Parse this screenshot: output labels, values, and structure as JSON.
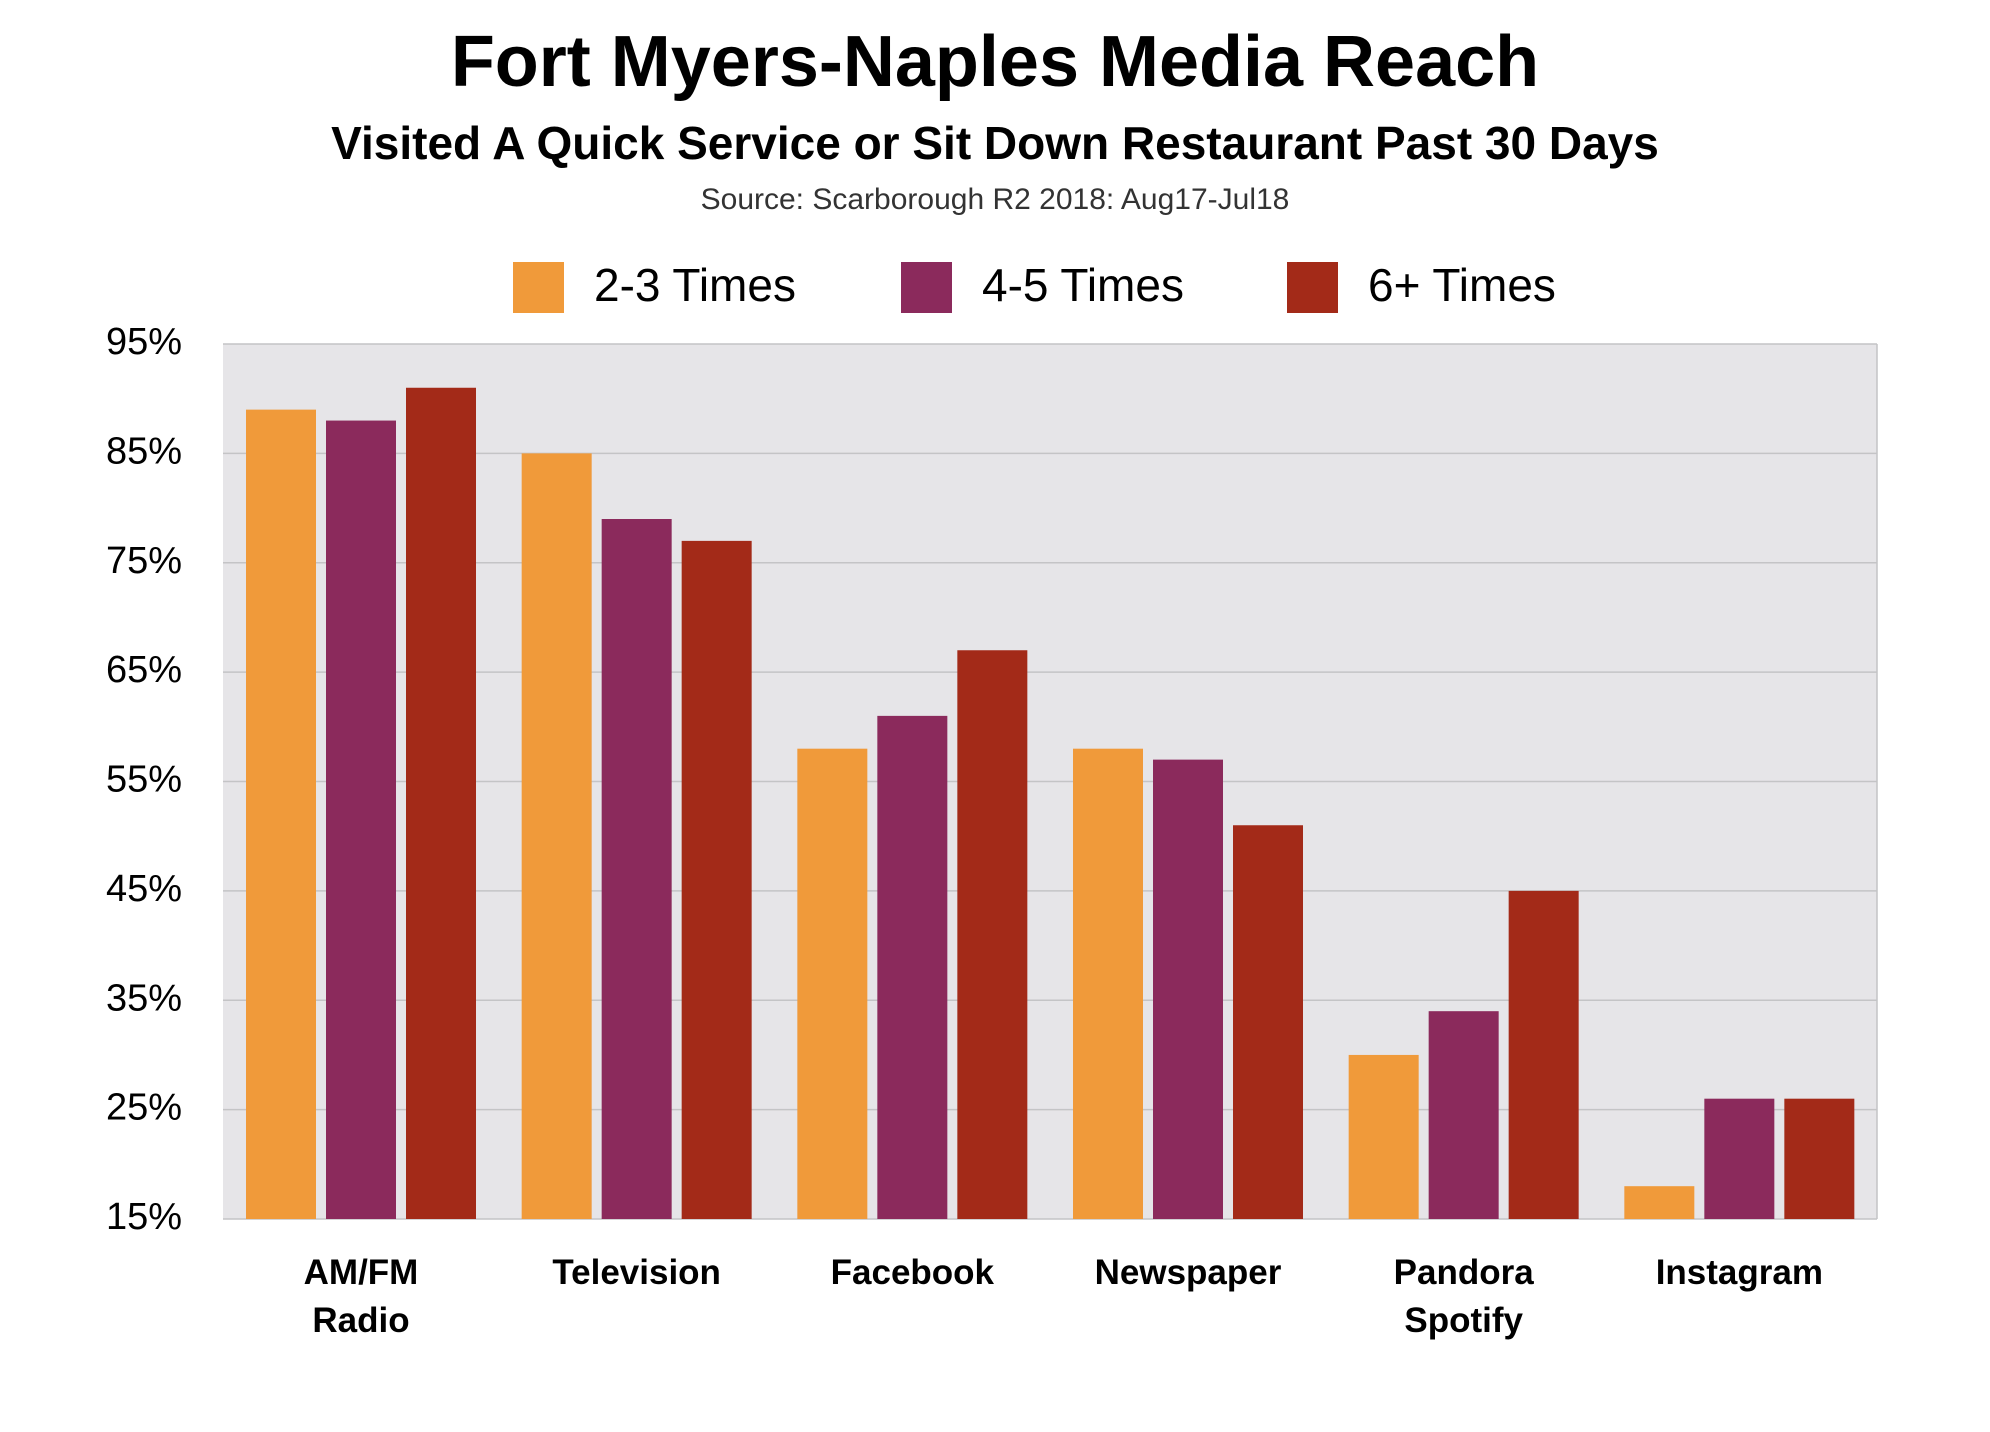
{
  "chart_data": {
    "type": "bar",
    "title": "Fort Myers-Naples Media Reach",
    "subtitle": "Visited A Quick Service or Sit Down Restaurant Past 30 Days",
    "source": "Source: Scarborough R2 2018: Aug17-Jul18",
    "categories": [
      "AM/FM Radio",
      "Television",
      "Facebook",
      "Newspaper",
      "Pandora Spotify",
      "Instagram"
    ],
    "series": [
      {
        "name": "2-3 Times",
        "color": "#f09a3a",
        "values": [
          89,
          85,
          58,
          58,
          30,
          18
        ]
      },
      {
        "name": "4-5 Times",
        "color": "#8b2a5c",
        "values": [
          88,
          79,
          61,
          57,
          34,
          26
        ]
      },
      {
        "name": "6+ Times",
        "color": "#a32a18",
        "values": [
          91,
          77,
          67,
          51,
          45,
          26
        ]
      }
    ],
    "ylim": [
      15,
      95
    ],
    "yticks": [
      {
        "value": 15,
        "label": "15%"
      },
      {
        "value": 25,
        "label": "25%"
      },
      {
        "value": 35,
        "label": "35%"
      },
      {
        "value": 45,
        "label": "45%"
      },
      {
        "value": 55,
        "label": "55%"
      },
      {
        "value": 65,
        "label": "65%"
      },
      {
        "value": 75,
        "label": "75%"
      },
      {
        "value": 85,
        "label": "85%"
      },
      {
        "value": 95,
        "label": "95%"
      }
    ],
    "grid": true,
    "legend": "top"
  }
}
